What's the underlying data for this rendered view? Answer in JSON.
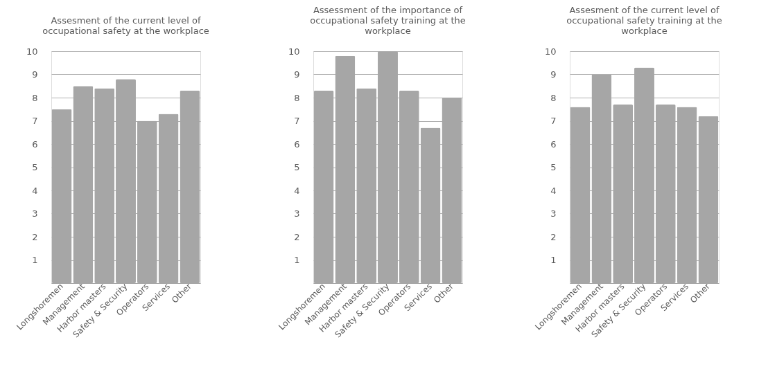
{
  "chart_data": [
    {
      "type": "bar",
      "title": "Assesment of the current level of occupational safety at the workplace",
      "categories": [
        "Longshoremen",
        "Management",
        "Harbor masters",
        "Safety & Security",
        "Operators",
        "Services",
        "Other"
      ],
      "values": [
        7.5,
        8.5,
        8.4,
        8.8,
        7.0,
        7.3,
        8.3
      ],
      "color": "#a6a6a6",
      "ylim": [
        0,
        10
      ],
      "yticks": [
        1,
        2,
        3,
        4,
        5,
        6,
        7,
        8,
        9,
        10
      ],
      "grid": "y"
    },
    {
      "type": "bar",
      "title": "Assessment of the importance of occupational safety training at the workplace",
      "categories": [
        "Longshoremen",
        "Management",
        "Harbor masters",
        "Safety & Security",
        "Operators",
        "Services",
        "Other"
      ],
      "values": [
        8.3,
        9.8,
        8.4,
        10.0,
        8.3,
        6.7,
        8.0
      ],
      "color": "#a6a6a6",
      "ylim": [
        0,
        10
      ],
      "yticks": [
        1,
        2,
        3,
        4,
        5,
        6,
        7,
        8,
        9,
        10
      ],
      "grid": "y"
    },
    {
      "type": "bar",
      "title": "Assesment of the current level of occupational safety training at the workplace",
      "categories": [
        "Longshoremen",
        "Management",
        "Harbor masters",
        "Safety & Security",
        "Operators",
        "Services",
        "Other"
      ],
      "values": [
        7.6,
        9.0,
        7.7,
        9.3,
        7.7,
        7.6,
        7.2
      ],
      "color": "#a6a6a6",
      "ylim": [
        0,
        10
      ],
      "yticks": [
        1,
        2,
        3,
        4,
        5,
        6,
        7,
        8,
        9,
        10
      ],
      "grid": "y"
    }
  ]
}
